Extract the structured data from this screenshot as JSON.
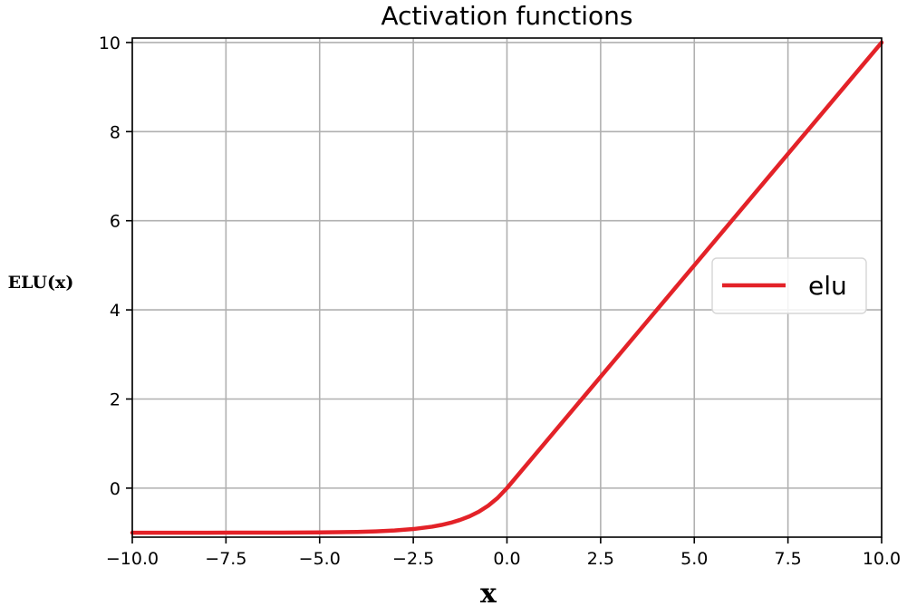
{
  "chart_data": {
    "type": "line",
    "title": "Activation functions",
    "xlabel": "x",
    "ylabel": "ELU(x)",
    "xlim": [
      -10,
      10
    ],
    "ylim": [
      -1.1,
      10.1
    ],
    "x_ticks": [
      "−10.0",
      "−7.5",
      "−5.0",
      "−2.5",
      "0.0",
      "2.5",
      "5.0",
      "7.5",
      "10.0"
    ],
    "x_tick_values": [
      -10,
      -7.5,
      -5,
      -2.5,
      0,
      2.5,
      5,
      7.5,
      10
    ],
    "y_ticks": [
      "0",
      "2",
      "4",
      "6",
      "8",
      "10"
    ],
    "y_tick_values": [
      0,
      2,
      4,
      6,
      8,
      10
    ],
    "grid": true,
    "legend_position": "center-right",
    "series": [
      {
        "name": "elu",
        "color": "#e32228",
        "x": [
          -10,
          -9,
          -8,
          -7,
          -6,
          -5,
          -4.5,
          -4,
          -3.5,
          -3,
          -2.5,
          -2,
          -1.75,
          -1.5,
          -1.25,
          -1,
          -0.75,
          -0.5,
          -0.25,
          0,
          1,
          2,
          3,
          4,
          5,
          6,
          7,
          8,
          9,
          10
        ],
        "y": [
          -1.0,
          -1.0,
          -1.0,
          -0.999,
          -0.998,
          -0.993,
          -0.989,
          -0.982,
          -0.97,
          -0.95,
          -0.918,
          -0.865,
          -0.826,
          -0.777,
          -0.713,
          -0.632,
          -0.528,
          -0.393,
          -0.221,
          0,
          1,
          2,
          3,
          4,
          5,
          6,
          7,
          8,
          9,
          10
        ]
      }
    ]
  }
}
